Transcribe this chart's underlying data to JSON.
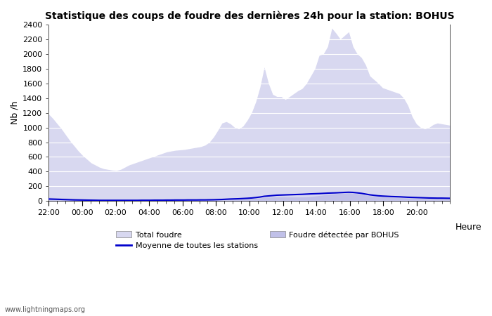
{
  "title": "Statistique des coups de foudre des dernières 24h pour la station: BOHUS",
  "xlabel": "Heure",
  "ylabel": "Nb /h",
  "ylim": [
    0,
    2400
  ],
  "yticks": [
    0,
    200,
    400,
    600,
    800,
    1000,
    1200,
    1400,
    1600,
    1800,
    2000,
    2200,
    2400
  ],
  "bg_color": "#ffffff",
  "watermark": "www.lightningmaps.org",
  "legend_labels": [
    "Total foudre",
    "Moyenne de toutes les stations",
    "Foudre détectée par BOHUS"
  ],
  "total_foudre_color": "#d8d8f0",
  "bohus_color": "#c0c0e8",
  "moyenne_color": "#0000cc",
  "x_tick_pos": [
    0,
    2,
    4,
    6,
    8,
    10,
    12,
    14,
    16,
    18,
    20,
    22
  ],
  "x_tick_labels": [
    "22:00",
    "00:00",
    "02:00",
    "04:00",
    "06:00",
    "08:00",
    "10:00",
    "12:00",
    "14:00",
    "16:00",
    "18:00",
    "20:00"
  ],
  "total_foudre": [
    1180,
    1120,
    1050,
    980,
    900,
    820,
    750,
    680,
    620,
    570,
    520,
    490,
    460,
    440,
    430,
    420,
    415,
    430,
    460,
    490,
    510,
    530,
    550,
    570,
    590,
    610,
    630,
    650,
    670,
    680,
    690,
    695,
    700,
    710,
    720,
    730,
    740,
    760,
    800,
    870,
    960,
    1060,
    1080,
    1050,
    1000,
    980,
    1020,
    1100,
    1200,
    1350,
    1550,
    1820,
    1600,
    1450,
    1420,
    1420,
    1380,
    1420,
    1460,
    1500,
    1530,
    1600,
    1700,
    1800,
    1980,
    2000,
    2100,
    2350,
    2280,
    2200,
    2250,
    2300,
    2100,
    2000,
    1950,
    1850,
    1700,
    1650,
    1600,
    1540,
    1520,
    1500,
    1480,
    1460,
    1400,
    1300,
    1150,
    1050,
    1000,
    980,
    1000,
    1040,
    1060,
    1050,
    1040,
    1030
  ],
  "bohus": [
    50,
    48,
    45,
    42,
    40,
    38,
    35,
    32,
    30,
    28,
    26,
    24,
    22,
    20,
    18,
    16,
    15,
    14,
    14,
    15,
    15,
    16,
    17,
    18,
    18,
    19,
    20,
    21,
    22,
    23,
    24,
    24,
    25,
    25,
    25,
    26,
    26,
    27,
    28,
    30,
    32,
    35,
    38,
    40,
    40,
    38,
    36,
    35,
    36,
    38,
    42,
    48,
    52,
    55,
    57,
    58,
    57,
    56,
    55,
    55,
    56,
    58,
    62,
    68,
    75,
    82,
    90,
    95,
    100,
    105,
    108,
    112,
    108,
    100,
    90,
    80,
    72,
    65,
    60,
    56,
    52,
    50,
    48,
    46,
    44,
    42,
    40,
    38,
    36,
    35,
    35,
    36,
    37,
    38,
    38,
    38
  ],
  "moyenne": [
    28,
    26,
    24,
    22,
    20,
    18,
    16,
    15,
    14,
    13,
    12,
    11,
    10,
    10,
    10,
    10,
    10,
    10,
    10,
    10,
    10,
    10,
    11,
    11,
    11,
    12,
    12,
    12,
    13,
    13,
    14,
    14,
    14,
    15,
    15,
    15,
    16,
    16,
    17,
    18,
    20,
    22,
    25,
    28,
    30,
    32,
    35,
    38,
    42,
    48,
    55,
    65,
    70,
    75,
    80,
    82,
    84,
    86,
    88,
    90,
    92,
    95,
    98,
    100,
    102,
    105,
    108,
    110,
    112,
    115,
    118,
    120,
    118,
    112,
    105,
    95,
    85,
    78,
    72,
    68,
    65,
    62,
    60,
    58,
    55,
    52,
    50,
    48,
    46,
    44,
    42,
    41,
    40,
    40,
    39,
    38
  ]
}
